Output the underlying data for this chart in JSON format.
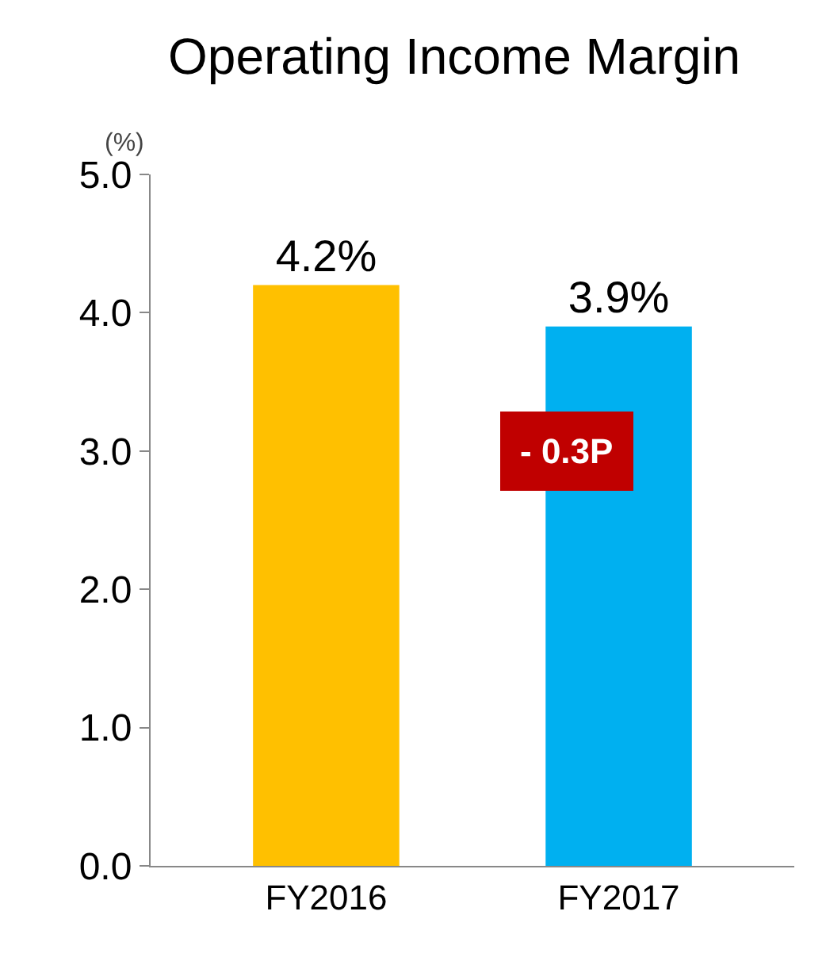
{
  "chart_data": {
    "type": "bar",
    "title": "Operating Income Margin",
    "ylabel": "(%)",
    "categories": [
      "FY2016",
      "FY2017"
    ],
    "values": [
      4.2,
      3.9
    ],
    "colors": [
      "#ffc000",
      "#00b0f0"
    ],
    "value_labels": [
      "4.2%",
      "3.9%"
    ],
    "ylim": [
      0,
      5
    ],
    "yticks": [
      {
        "value": 0,
        "label": "0.0"
      },
      {
        "value": 1,
        "label": "1.0"
      },
      {
        "value": 2,
        "label": "2.0"
      },
      {
        "value": 3,
        "label": "3.0"
      },
      {
        "value": 4,
        "label": "4.0"
      },
      {
        "value": 5,
        "label": "5.0"
      }
    ],
    "annotations": [
      "- 0.3P"
    ]
  }
}
